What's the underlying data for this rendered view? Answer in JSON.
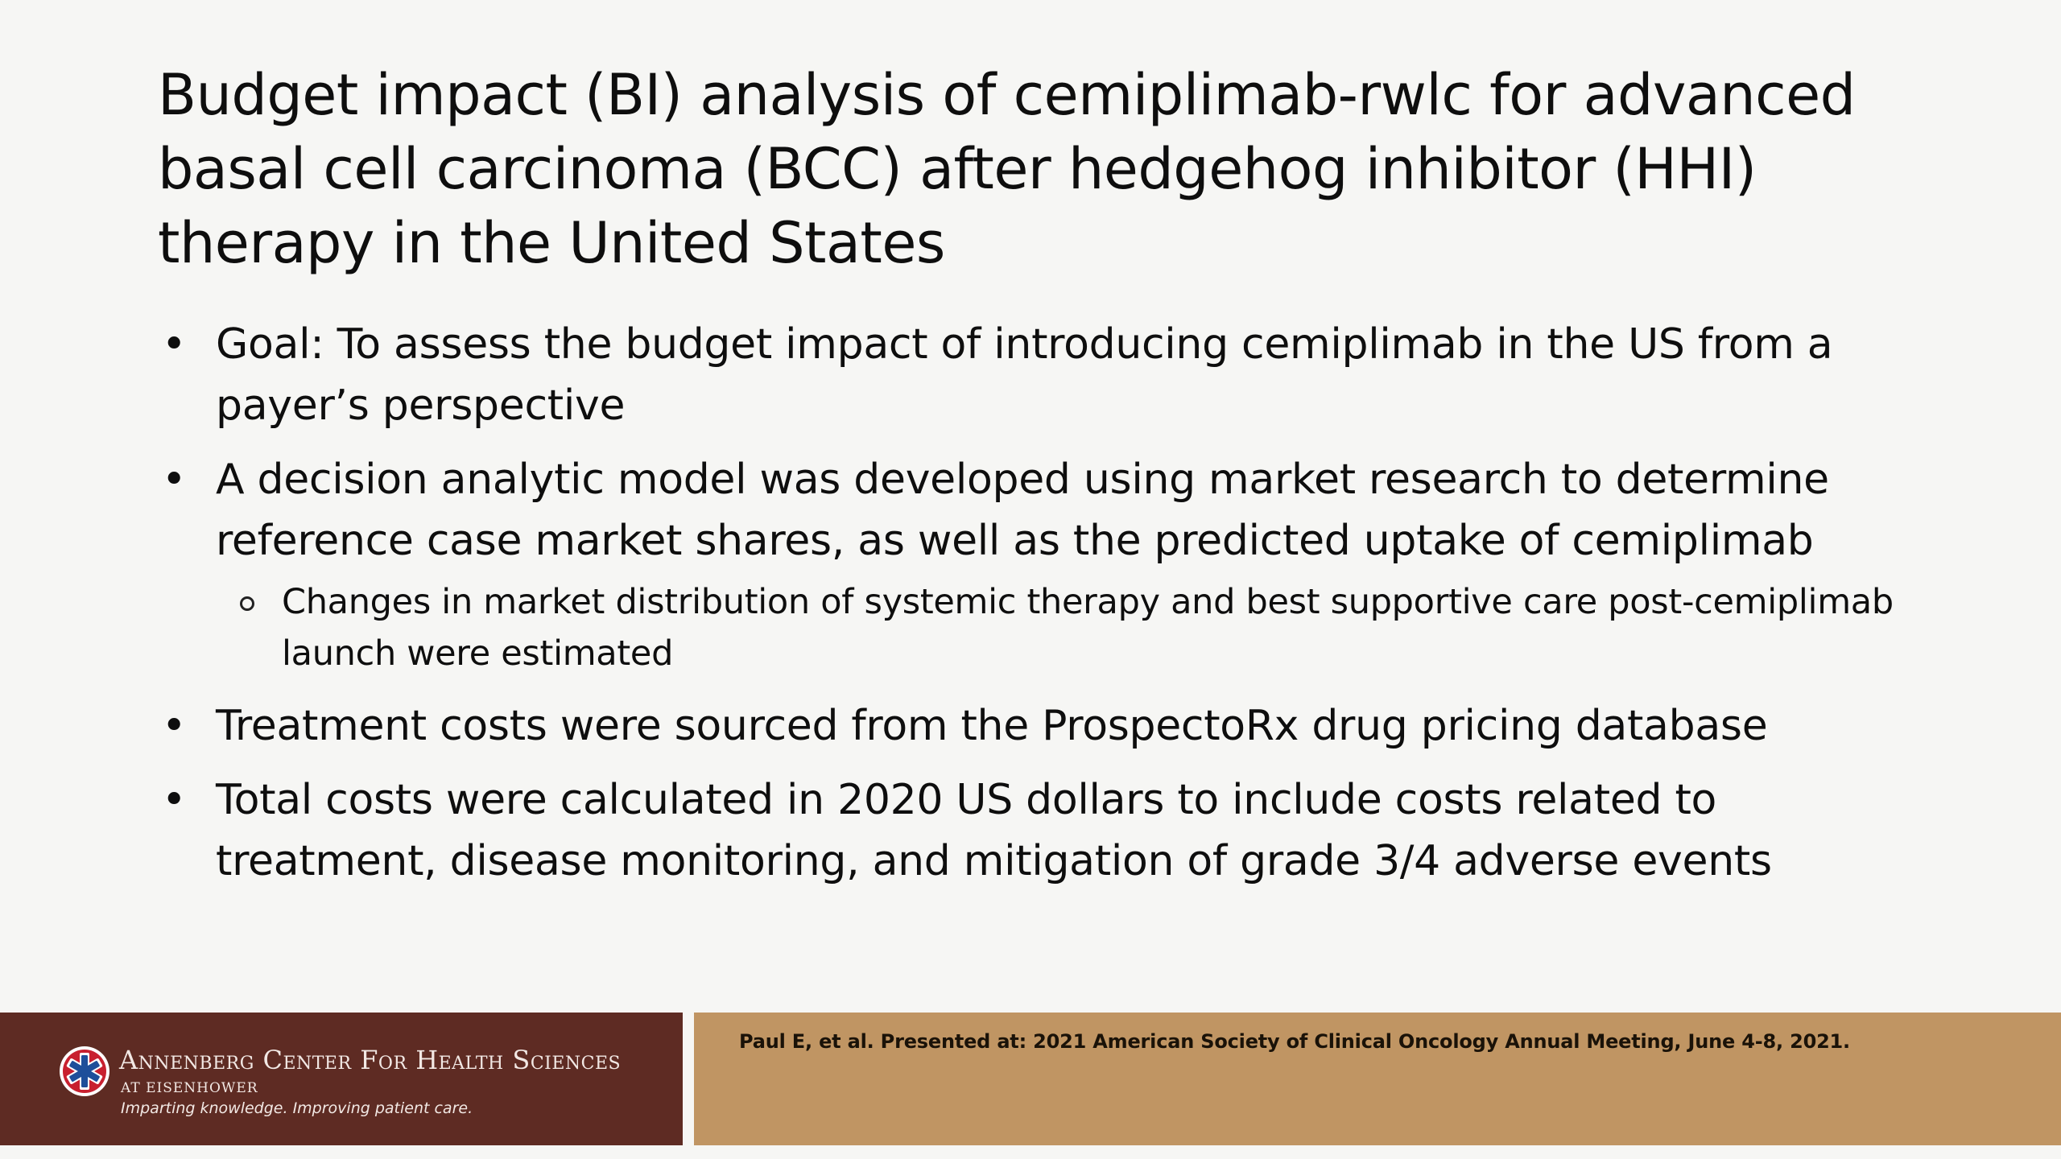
{
  "slide": {
    "title": "Budget impact (BI) analysis of cemiplimab-rwlc for advanced basal cell carcinoma (BCC) after hedgehog inhibitor (HHI) therapy in the United States",
    "bullets": [
      {
        "text": "Goal: To assess the budget impact of introducing cemiplimab in the US from a payer’s perspective"
      },
      {
        "text": "A decision analytic model was developed using market research to determine reference case market shares, as well as the predicted uptake of cemiplimab",
        "sub": [
          "Changes in market distribution of systemic therapy and best supportive care post-cemiplimab launch were estimated"
        ]
      },
      {
        "text": "Treatment costs were sourced from the ProspectoRx drug pricing database"
      },
      {
        "text": "Total costs were calculated in 2020 US dollars to include costs related to treatment, disease monitoring, and mitigation of grade 3/4 adverse events"
      }
    ],
    "bullet_glyph": "•"
  },
  "footer": {
    "org_name": "Annenberg Center For Health Sciences",
    "org_sub": "AT EISENHOWER",
    "tagline": "Imparting knowledge. Improving patient care.",
    "citation": "Paul E, et al. Presented at: 2021 American Society of Clinical Oncology Annual Meeting, June 4-8, 2021.",
    "colors": {
      "left": "#5e2b23",
      "right": "#c09563"
    },
    "logo_icon": "star-of-life-logo-icon"
  }
}
